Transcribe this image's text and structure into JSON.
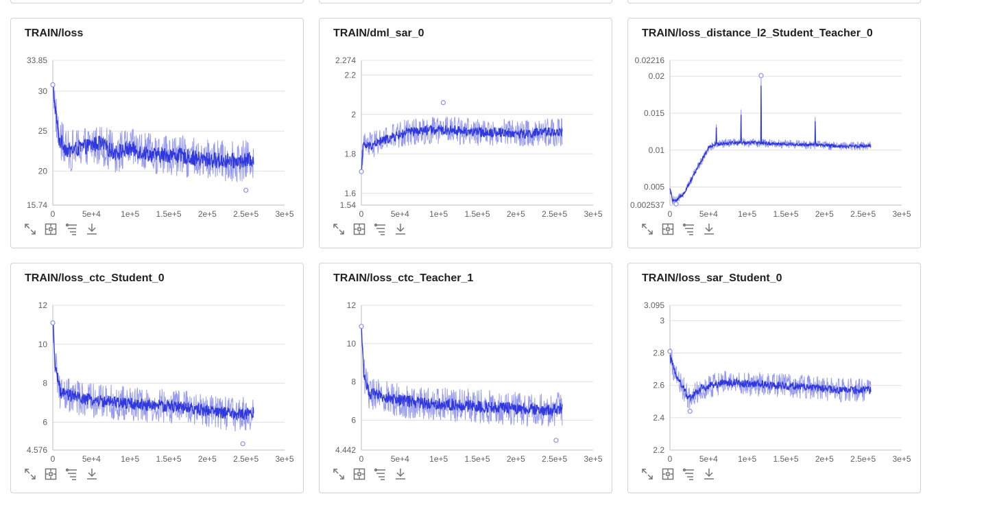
{
  "colors": {
    "series_smoothed": "#2f37de",
    "series_raw": "#8c8ff0",
    "grid": "#e0e0e0",
    "axis": "#bdbdbd",
    "icon": "#757575"
  },
  "toolbar_icons": [
    "fullscreen-icon",
    "fit-domain-icon",
    "filter-icon",
    "download-icon"
  ],
  "chart_data": [
    {
      "type": "line",
      "title": "TRAIN/loss",
      "xlabel": "",
      "ylabel": "",
      "xlim": [
        0,
        300000
      ],
      "ylim": [
        15.74,
        33.85
      ],
      "x_ticks": [
        0,
        50000,
        100000,
        150000,
        200000,
        250000,
        300000
      ],
      "x_tick_labels": [
        "0",
        "5e+4",
        "1e+5",
        "1.5e+5",
        "2e+5",
        "2.5e+5",
        "3e+5"
      ],
      "y_ticks": [
        15.74,
        20,
        25,
        30,
        33.85
      ],
      "y_tick_labels": [
        "15.74",
        "20",
        "25",
        "30",
        "33.85"
      ],
      "x_end": 260000,
      "series": [
        {
          "name": "TRAIN/loss",
          "points": [
            [
              0,
              31
            ],
            [
              3000,
              28
            ],
            [
              8000,
              24
            ],
            [
              20000,
              22.5
            ],
            [
              40000,
              23
            ],
            [
              60000,
              23.5
            ],
            [
              80000,
              22.3
            ],
            [
              100000,
              22.8
            ],
            [
              130000,
              22
            ],
            [
              160000,
              22
            ],
            [
              190000,
              21.5
            ],
            [
              220000,
              21.3
            ],
            [
              245000,
              21.2
            ],
            [
              260000,
              21.5
            ]
          ],
          "noise": 1.4,
          "raw_noise": 2.6
        }
      ],
      "markers": [
        [
          0,
          30.8
        ],
        [
          250000,
          17.6
        ]
      ]
    },
    {
      "type": "line",
      "title": "TRAIN/dml_sar_0",
      "xlabel": "",
      "ylabel": "",
      "xlim": [
        0,
        300000
      ],
      "ylim": [
        1.54,
        2.274
      ],
      "x_ticks": [
        0,
        50000,
        100000,
        150000,
        200000,
        250000,
        300000
      ],
      "x_tick_labels": [
        "0",
        "5e+4",
        "1e+5",
        "1.5e+5",
        "2e+5",
        "2.5e+5",
        "3e+5"
      ],
      "y_ticks": [
        1.54,
        1.6,
        1.8,
        2,
        2.2,
        2.274
      ],
      "y_tick_labels": [
        "1.54",
        "1.6",
        "1.8",
        "2",
        "2.2",
        "2.274"
      ],
      "x_end": 260000,
      "series": [
        {
          "name": "TRAIN/dml_sar_0",
          "points": [
            [
              0,
              1.71
            ],
            [
              2000,
              1.84
            ],
            [
              10000,
              1.84
            ],
            [
              30000,
              1.87
            ],
            [
              60000,
              1.91
            ],
            [
              90000,
              1.92
            ],
            [
              120000,
              1.92
            ],
            [
              150000,
              1.91
            ],
            [
              180000,
              1.91
            ],
            [
              210000,
              1.9
            ],
            [
              240000,
              1.91
            ],
            [
              260000,
              1.91
            ]
          ],
          "noise": 0.035,
          "raw_noise": 0.07
        }
      ],
      "markers": [
        [
          0,
          1.71
        ],
        [
          106000,
          2.06
        ]
      ]
    },
    {
      "type": "line",
      "title": "TRAIN/loss_distance_l2_Student_Teacher_0",
      "xlabel": "",
      "ylabel": "",
      "xlim": [
        0,
        300000
      ],
      "ylim": [
        0.002537,
        0.02216
      ],
      "x_ticks": [
        0,
        50000,
        100000,
        150000,
        200000,
        250000,
        300000
      ],
      "x_tick_labels": [
        "0",
        "5e+4",
        "1e+5",
        "1.5e+5",
        "2e+5",
        "2.5e+5",
        "3e+5"
      ],
      "y_ticks": [
        0.002537,
        0.005,
        0.01,
        0.015,
        0.02,
        0.02216
      ],
      "y_tick_labels": [
        "0.002537",
        "0.005",
        "0.01",
        "0.015",
        "0.02",
        "0.02216"
      ],
      "x_end": 260000,
      "series": [
        {
          "name": "TRAIN/loss_distance_l2_Student_Teacher_0",
          "points": [
            [
              0,
              0.0048
            ],
            [
              3000,
              0.0033
            ],
            [
              8000,
              0.003
            ],
            [
              20000,
              0.0045
            ],
            [
              35000,
              0.0075
            ],
            [
              50000,
              0.0103
            ],
            [
              60000,
              0.0108
            ],
            [
              80000,
              0.011
            ],
            [
              110000,
              0.011
            ],
            [
              150000,
              0.0108
            ],
            [
              190000,
              0.0107
            ],
            [
              230000,
              0.0105
            ],
            [
              260000,
              0.0106
            ]
          ],
          "noise": 0.0003,
          "raw_noise": 0.0006,
          "spikes": [
            [
              60000,
              0.0135
            ],
            [
              92000,
              0.0155
            ],
            [
              118000,
              0.0201
            ],
            [
              188000,
              0.0145
            ]
          ]
        }
      ],
      "markers": [
        [
          8000,
          0.0027
        ],
        [
          118000,
          0.0201
        ]
      ]
    },
    {
      "type": "line",
      "title": "TRAIN/loss_ctc_Student_0",
      "xlabel": "",
      "ylabel": "",
      "xlim": [
        0,
        300000
      ],
      "ylim": [
        4.576,
        12
      ],
      "x_ticks": [
        0,
        50000,
        100000,
        150000,
        200000,
        250000,
        300000
      ],
      "x_tick_labels": [
        "0",
        "5e+4",
        "1e+5",
        "1.5e+5",
        "2e+5",
        "2.5e+5",
        "3e+5"
      ],
      "y_ticks": [
        4.576,
        6,
        8,
        10,
        12
      ],
      "y_tick_labels": [
        "4.576",
        "6",
        "8",
        "10",
        "12"
      ],
      "x_end": 260000,
      "series": [
        {
          "name": "TRAIN/loss_ctc_Student_0",
          "points": [
            [
              0,
              11.1
            ],
            [
              3000,
              9
            ],
            [
              10000,
              7.5
            ],
            [
              40000,
              7.2
            ],
            [
              80000,
              7
            ],
            [
              120000,
              6.9
            ],
            [
              160000,
              6.8
            ],
            [
              200000,
              6.6
            ],
            [
              240000,
              6.4
            ],
            [
              260000,
              6.5
            ]
          ],
          "noise": 0.45,
          "raw_noise": 0.9
        }
      ],
      "markers": [
        [
          0,
          11.1
        ],
        [
          246000,
          4.9
        ]
      ]
    },
    {
      "type": "line",
      "title": "TRAIN/loss_ctc_Teacher_1",
      "xlabel": "",
      "ylabel": "",
      "xlim": [
        0,
        300000
      ],
      "ylim": [
        4.442,
        12
      ],
      "x_ticks": [
        0,
        50000,
        100000,
        150000,
        200000,
        250000,
        300000
      ],
      "x_tick_labels": [
        "0",
        "5e+4",
        "1e+5",
        "1.5e+5",
        "2e+5",
        "2.5e+5",
        "3e+5"
      ],
      "y_ticks": [
        4.442,
        6,
        8,
        10,
        12
      ],
      "y_tick_labels": [
        "4.442",
        "6",
        "8",
        "10",
        "12"
      ],
      "x_end": 260000,
      "series": [
        {
          "name": "TRAIN/loss_ctc_Teacher_1",
          "points": [
            [
              0,
              10.9
            ],
            [
              3000,
              8.5
            ],
            [
              10000,
              7.4
            ],
            [
              40000,
              7.1
            ],
            [
              80000,
              6.9
            ],
            [
              120000,
              6.8
            ],
            [
              160000,
              6.7
            ],
            [
              200000,
              6.6
            ],
            [
              240000,
              6.5
            ],
            [
              260000,
              6.6
            ]
          ],
          "noise": 0.45,
          "raw_noise": 0.9
        }
      ],
      "markers": [
        [
          0,
          10.9
        ],
        [
          252000,
          4.95
        ]
      ]
    },
    {
      "type": "line",
      "title": "TRAIN/loss_sar_Student_0",
      "xlabel": "",
      "ylabel": "",
      "xlim": [
        0,
        300000
      ],
      "ylim": [
        2.2,
        3.095
      ],
      "x_ticks": [
        0,
        50000,
        100000,
        150000,
        200000,
        250000,
        300000
      ],
      "x_tick_labels": [
        "0",
        "5e+4",
        "1e+5",
        "1.5e+5",
        "2e+5",
        "2.5e+5",
        "3e+5"
      ],
      "y_ticks": [
        2.2,
        2.4,
        2.6,
        2.8,
        3,
        3.095
      ],
      "y_tick_labels": [
        "2.2",
        "2.4",
        "2.6",
        "2.8",
        "3",
        "3.095"
      ],
      "x_end": 260000,
      "series": [
        {
          "name": "TRAIN/loss_sar_Student_0",
          "points": [
            [
              0,
              2.78
            ],
            [
              5000,
              2.7
            ],
            [
              15000,
              2.6
            ],
            [
              25000,
              2.52
            ],
            [
              40000,
              2.58
            ],
            [
              70000,
              2.62
            ],
            [
              100000,
              2.61
            ],
            [
              140000,
              2.6
            ],
            [
              180000,
              2.59
            ],
            [
              220000,
              2.57
            ],
            [
              260000,
              2.57
            ]
          ],
          "noise": 0.035,
          "raw_noise": 0.075
        }
      ],
      "markers": [
        [
          0,
          2.81
        ],
        [
          26000,
          2.44
        ]
      ]
    }
  ]
}
